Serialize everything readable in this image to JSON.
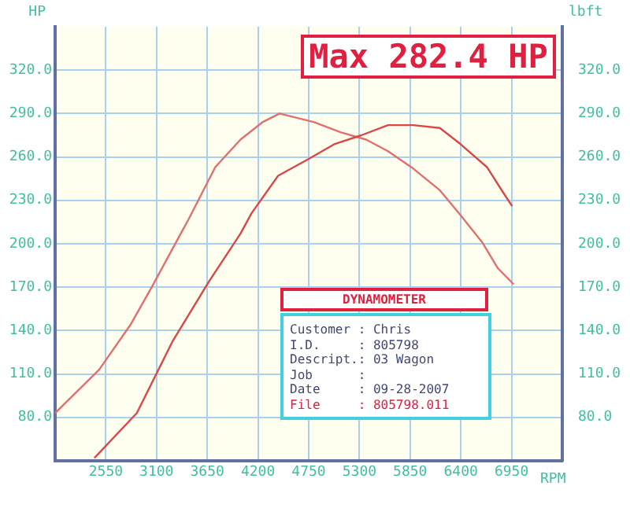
{
  "chart_data": {
    "type": "line",
    "xlabel": "RPM",
    "ylabel": "HP",
    "y2label": "lbft",
    "xlim": [
      2000,
      7500
    ],
    "xticks": [
      2550,
      3100,
      3650,
      4200,
      4750,
      5300,
      5850,
      6400,
      6950
    ],
    "ylim": [
      50,
      350
    ],
    "yticks": [
      {
        "value": 80,
        "label": "80.0"
      },
      {
        "value": 110,
        "label": "110.0"
      },
      {
        "value": 140,
        "label": "140.0"
      },
      {
        "value": 170,
        "label": "170.0"
      },
      {
        "value": 200,
        "label": "200.0"
      },
      {
        "value": 230,
        "label": "230.0"
      },
      {
        "value": 260,
        "label": "260.0"
      },
      {
        "value": 290,
        "label": "290.0"
      },
      {
        "value": 320,
        "label": "320.0"
      }
    ],
    "y2lim": [
      50,
      350
    ],
    "y2ticks": [
      {
        "value": 80,
        "label": "80.0"
      },
      {
        "value": 110,
        "label": "110.0"
      },
      {
        "value": 140,
        "label": "140.0"
      },
      {
        "value": 170,
        "label": "170.0"
      },
      {
        "value": 200,
        "label": "200.0"
      },
      {
        "value": 230,
        "label": "230.0"
      },
      {
        "value": 260,
        "label": "260.0"
      },
      {
        "value": 290,
        "label": "290.0"
      },
      {
        "value": 320,
        "label": "320.0"
      }
    ],
    "grid": true,
    "legend": false,
    "marker": "none",
    "line_style": "solid",
    "series": [
      {
        "color": "#d84848",
        "x": [
          2426,
          2886,
          3277,
          3669,
          4010,
          4129,
          4418,
          4759,
          5033,
          5321,
          5610,
          5883,
          6172,
          6394,
          6683,
          6853,
          6956
        ],
        "values": [
          52,
          83,
          133,
          174,
          207,
          221,
          247,
          259,
          269,
          275,
          282,
          282,
          280,
          269,
          253,
          236,
          226
        ]
      },
      {
        "color": "#e07070",
        "axis": "y2",
        "x": [
          2000,
          2477,
          2817,
          3056,
          3362,
          3448,
          3737,
          4010,
          4248,
          4435,
          4810,
          5100,
          5372,
          5610,
          5883,
          6172,
          6394,
          6632,
          6802,
          6972
        ],
        "values": [
          83,
          113,
          144,
          171,
          207,
          217,
          253,
          272,
          284,
          290,
          284,
          277,
          272,
          264,
          252,
          237,
          220,
          201,
          183,
          172
        ]
      }
    ],
    "annotations": [
      "Max 282.4 HP",
      "DYNAMOMETER",
      "Customer : Chris",
      "I.D.     : 805798",
      "Descript.: 03 Wagon",
      "Job      :",
      "Date     : 09-28-2007",
      "File     : 805798.011"
    ]
  }
}
